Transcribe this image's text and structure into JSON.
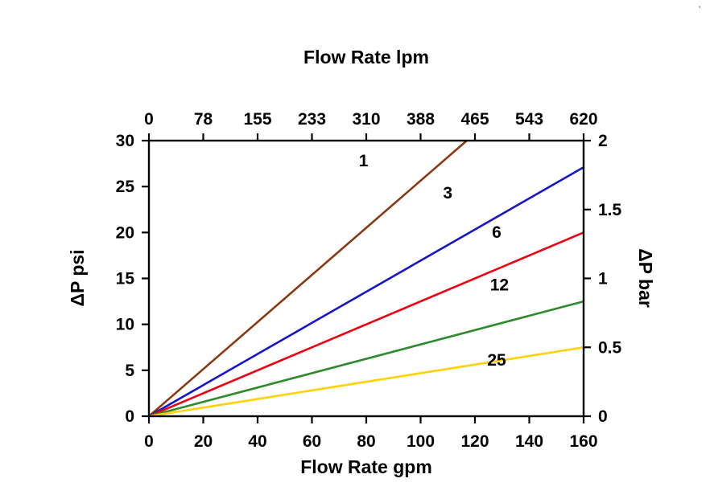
{
  "page": {
    "background": "#ffffff"
  },
  "titles": {
    "top": "Flow Rate lpm",
    "bottom": "Flow Rate gpm",
    "left": "ΔP psi",
    "right": "ΔP bar"
  },
  "chart_data": {
    "type": "line",
    "title": "Flow Rate lpm",
    "xlabel": "Flow Rate gpm",
    "ylabel": "ΔP psi",
    "ylabel_right": "ΔP bar",
    "x_axis_bottom": {
      "label": "Flow Rate gpm",
      "min": 0,
      "max": 160,
      "ticks": [
        0,
        20,
        40,
        60,
        80,
        100,
        120,
        140,
        160
      ]
    },
    "x_axis_top": {
      "label": "Flow Rate lpm",
      "tick_labels": [
        "0",
        "78",
        "155",
        "233",
        "310",
        "388",
        "465",
        "543",
        "620"
      ]
    },
    "y_axis_left": {
      "label": "ΔP psi",
      "min": 0,
      "max": 30,
      "ticks": [
        0,
        5,
        10,
        15,
        20,
        25,
        30
      ]
    },
    "y_axis_right": {
      "label": "ΔP bar",
      "min": 0,
      "max": 2,
      "tick_labels": [
        "0",
        "0.5",
        "1",
        "1.5",
        "2"
      ]
    },
    "grid": false,
    "legend": "inline-labels",
    "series": [
      {
        "name": "1",
        "color": "#8a3a10",
        "points": [
          [
            0,
            0
          ],
          [
            117,
            30
          ]
        ],
        "label": {
          "x": 79,
          "y": 27.2
        }
      },
      {
        "name": "3",
        "color": "#1515cc",
        "points": [
          [
            0,
            0
          ],
          [
            160,
            27.1
          ]
        ],
        "label": {
          "x": 110,
          "y": 23.7
        }
      },
      {
        "name": "6",
        "color": "#ee0011",
        "points": [
          [
            0,
            0
          ],
          [
            160,
            20.0
          ]
        ],
        "label": {
          "x": 128,
          "y": 19.4
        }
      },
      {
        "name": "12",
        "color": "#2e8b2e",
        "points": [
          [
            0,
            0
          ],
          [
            160,
            12.5
          ]
        ],
        "label": {
          "x": 129,
          "y": 13.7
        }
      },
      {
        "name": "25",
        "color": "#ffd200",
        "points": [
          [
            0,
            0
          ],
          [
            160,
            7.5
          ]
        ],
        "label": {
          "x": 128,
          "y": 5.5
        }
      }
    ],
    "frame_color": "#000000"
  }
}
